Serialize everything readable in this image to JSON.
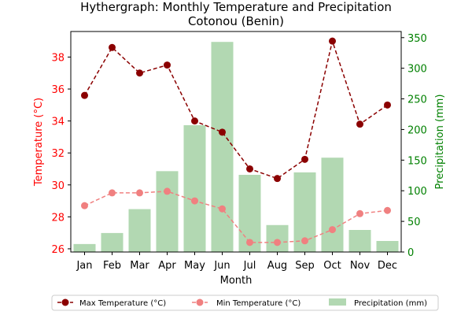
{
  "chart_data": {
    "type": "bar+line",
    "title_line1": "Hythergraph: Monthly Temperature and Precipitation",
    "title_line2": "Cotonou (Benin)",
    "xlabel": "Month",
    "ylabel_left": "Temperature (°C)",
    "ylabel_right": "Precipitation (mm)",
    "categories": [
      "Jan",
      "Feb",
      "Mar",
      "Apr",
      "May",
      "Jun",
      "Jul",
      "Aug",
      "Sep",
      "Oct",
      "Nov",
      "Dec"
    ],
    "y_left_ticks": [
      26,
      28,
      30,
      32,
      34,
      36,
      38
    ],
    "y_left_lim": [
      25.8,
      39.6
    ],
    "y_right_ticks": [
      0,
      50,
      100,
      150,
      200,
      250,
      300,
      350
    ],
    "y_right_lim": [
      0,
      360
    ],
    "series": [
      {
        "name": "Max Temperature (°C)",
        "kind": "line",
        "axis": "left",
        "color": "#8b0000",
        "values": [
          35.6,
          38.6,
          37.0,
          37.5,
          34.0,
          33.3,
          31.0,
          30.4,
          31.6,
          39.0,
          33.8,
          35.0
        ]
      },
      {
        "name": "Min Temperature (°C)",
        "kind": "line",
        "axis": "left",
        "color": "#f08080",
        "values": [
          28.7,
          29.5,
          29.5,
          29.6,
          29.0,
          28.5,
          26.4,
          26.4,
          26.5,
          27.2,
          28.2,
          28.4
        ]
      },
      {
        "name": "Precipitation (mm)",
        "kind": "bar",
        "axis": "right",
        "color": "#b2d8b2",
        "values": [
          13,
          31,
          70,
          132,
          207,
          343,
          126,
          44,
          130,
          154,
          36,
          18
        ]
      }
    ],
    "legend_position": "bottom-center",
    "grid": false,
    "left_axis_color": "#ff0000",
    "right_axis_color": "#008000"
  }
}
